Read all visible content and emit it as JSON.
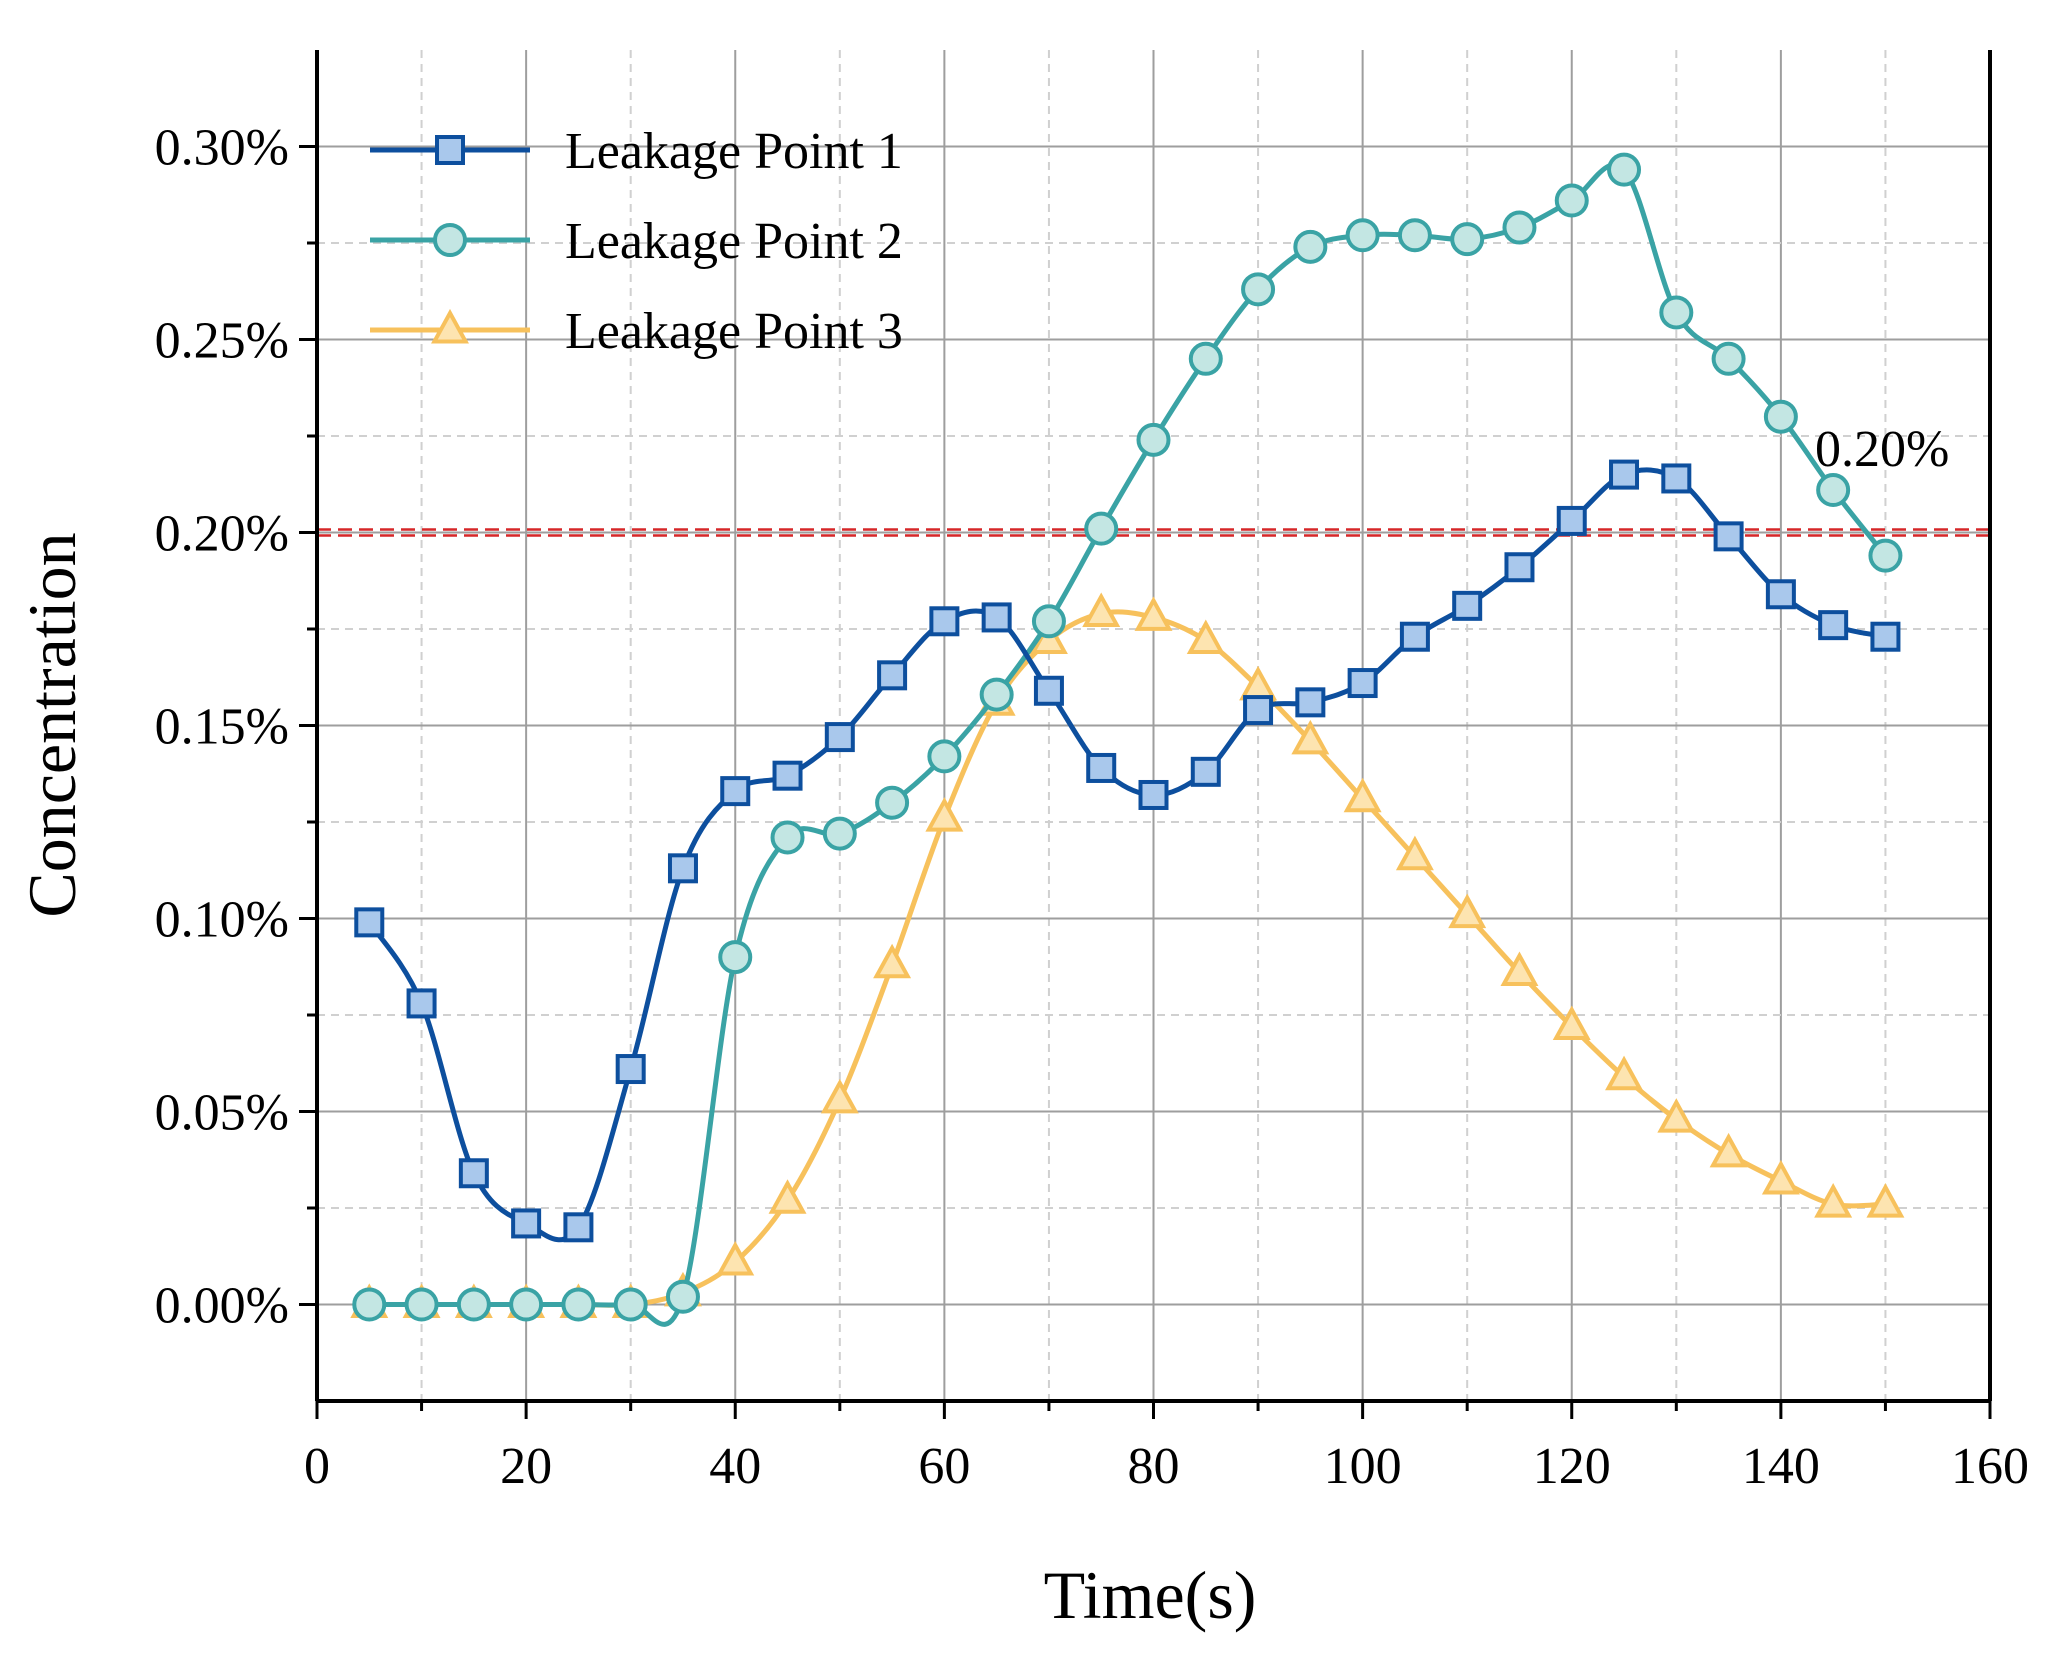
{
  "chart_data": {
    "type": "line",
    "title": "",
    "xlabel": "Time(s)",
    "ylabel": "Concentration",
    "xlim": [
      0,
      160
    ],
    "ylim": [
      -0.00025,
      0.00325
    ],
    "xticks": [
      0,
      20,
      40,
      60,
      80,
      100,
      120,
      140,
      160
    ],
    "xtick_labels": [
      "0",
      "20",
      "40",
      "60",
      "80",
      "100",
      "120",
      "140",
      "160"
    ],
    "yticks": [
      0,
      0.0005,
      0.001,
      0.0015,
      0.002,
      0.0025,
      0.003
    ],
    "ytick_labels": [
      "0.00%",
      "0.05%",
      "0.10%",
      "0.15%",
      "0.20%",
      "0.25%",
      "0.30%"
    ],
    "grid": true,
    "legend_position": "top-left",
    "threshold": {
      "value": 0.002,
      "label": "0.20%",
      "color": "#d62728"
    },
    "x": [
      5,
      10,
      15,
      20,
      25,
      30,
      35,
      40,
      45,
      50,
      55,
      60,
      65,
      70,
      75,
      80,
      85,
      90,
      95,
      100,
      105,
      110,
      115,
      120,
      125,
      130,
      135,
      140,
      145,
      150
    ],
    "series": [
      {
        "name": "Leakage Point 1",
        "marker": "square",
        "line_color": "#0d4f9e",
        "fill_color": "#a9c8ec",
        "x": [
          5,
          10,
          15,
          20,
          25,
          30,
          35,
          40,
          45,
          50,
          55,
          60,
          65,
          70,
          75,
          80,
          85,
          90,
          95,
          100,
          105,
          110,
          115,
          120,
          125,
          130,
          135,
          140,
          145,
          150
        ],
        "values": [
          0.00099,
          0.00078,
          0.00034,
          0.00021,
          0.0002,
          0.00061,
          0.00113,
          0.00133,
          0.00137,
          0.00147,
          0.00163,
          0.00177,
          0.00178,
          0.00159,
          0.00139,
          0.00132,
          0.00138,
          0.00154,
          0.00156,
          0.00161,
          0.00173,
          0.00181,
          0.00191,
          0.00203,
          0.00215,
          0.00214,
          0.00199,
          0.00184,
          0.00176,
          0.00173
        ]
      },
      {
        "name": "Leakage Point 2",
        "marker": "circle",
        "line_color": "#3aa3a5",
        "fill_color": "#c3e6e3",
        "x": [
          5,
          10,
          15,
          20,
          25,
          30,
          35,
          40,
          45,
          50,
          55,
          60,
          65,
          70,
          75,
          80,
          85,
          90,
          95,
          100,
          105,
          110,
          115,
          120,
          125,
          130,
          135,
          140,
          145,
          150
        ],
        "values": [
          0,
          0,
          0,
          0,
          0,
          0,
          2e-05,
          0.0009,
          0.00121,
          0.00122,
          0.0013,
          0.00142,
          0.00158,
          0.00177,
          0.00201,
          0.00224,
          0.00245,
          0.00263,
          0.00274,
          0.00277,
          0.00277,
          0.00276,
          0.00279,
          0.00286,
          0.00294,
          0.00257,
          0.00245,
          0.0023,
          0.00211,
          0.00194
        ]
      },
      {
        "name": "Leakage Point 3",
        "marker": "triangle",
        "line_color": "#f7c15c",
        "fill_color": "#fde4b0",
        "x": [
          5,
          10,
          15,
          20,
          25,
          30,
          35,
          40,
          45,
          50,
          55,
          60,
          65,
          70,
          75,
          80,
          85,
          90,
          95,
          100,
          105,
          110,
          115,
          120,
          125,
          130,
          135,
          140,
          145,
          150
        ],
        "values": [
          0,
          0,
          0,
          0,
          0,
          0,
          3e-05,
          0.00011,
          0.00027,
          0.00053,
          0.00088,
          0.00126,
          0.00156,
          0.00172,
          0.00179,
          0.00178,
          0.00172,
          0.0016,
          0.00146,
          0.00131,
          0.00116,
          0.00101,
          0.00086,
          0.00072,
          0.00059,
          0.00048,
          0.00039,
          0.00032,
          0.00026,
          0.00026
        ]
      }
    ]
  }
}
